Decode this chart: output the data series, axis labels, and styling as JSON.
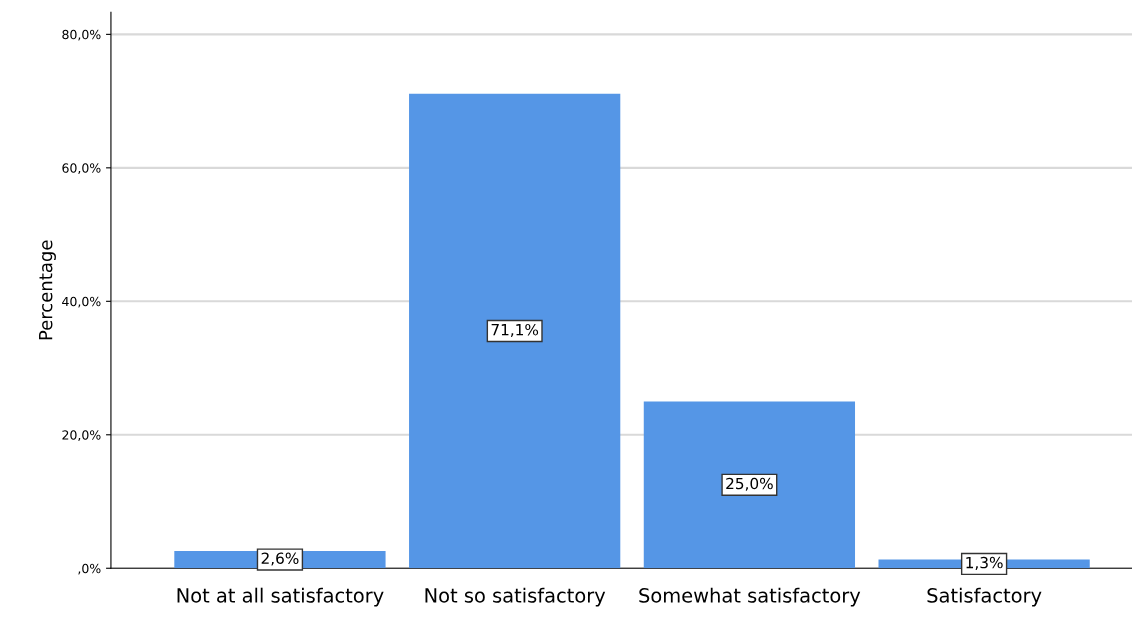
{
  "chart_data": {
    "type": "bar",
    "ylabel": "Percentage",
    "categories": [
      "Not at all satisfactory",
      "Not so satisfactory",
      "Somewhat satisfactory",
      "Satisfactory"
    ],
    "values": [
      2.6,
      71.1,
      25.0,
      1.3
    ],
    "value_labels": [
      "2,6%",
      "71,1%",
      "25,0%",
      "1,3%"
    ],
    "color": "#5596e6",
    "ylim": [
      0,
      83.3
    ],
    "yticks": [
      {
        "value": 0,
        "label": ",0%"
      },
      {
        "value": 20,
        "label": "20,0%"
      },
      {
        "value": 40,
        "label": "40,0%"
      },
      {
        "value": 60,
        "label": "60,0%"
      },
      {
        "value": 80,
        "label": "80,0%"
      }
    ],
    "grid": "y"
  }
}
